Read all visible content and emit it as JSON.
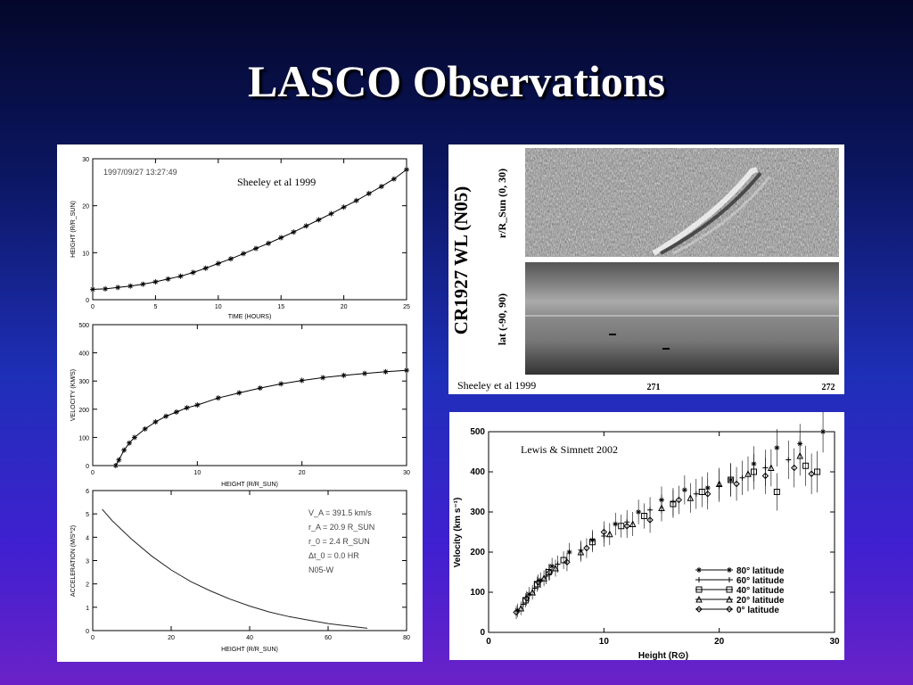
{
  "slide": {
    "title": "LASCO Observations"
  },
  "citations": {
    "sheeley_left": "Sheeley et al 1999",
    "sheeley_right": "Sheeley et al 1999",
    "lewis": "Lewis & Simnett 2002"
  },
  "chart_data": [
    {
      "type": "line",
      "id": "height-time",
      "annotation": "1997/09/27   13:27:49",
      "xlabel": "TIME (HOURS)",
      "ylabel": "HEIGHT (R/R_SUN)",
      "xlim": [
        0,
        25
      ],
      "ylim": [
        0,
        30
      ],
      "xticks": [
        0,
        5,
        10,
        15,
        20,
        25
      ],
      "yticks": [
        0,
        10,
        20,
        30
      ],
      "x": [
        0,
        1,
        2,
        3,
        4,
        5,
        6,
        7,
        8,
        9,
        10,
        11,
        12,
        13,
        14,
        15,
        16,
        17,
        18,
        19,
        20,
        21,
        22,
        23,
        24,
        25
      ],
      "y": [
        2.2,
        2.3,
        2.6,
        2.9,
        3.3,
        3.8,
        4.4,
        5.0,
        5.8,
        6.7,
        7.7,
        8.7,
        9.8,
        10.9,
        12.0,
        13.2,
        14.4,
        15.7,
        17.0,
        18.3,
        19.7,
        21.1,
        22.6,
        24.1,
        25.7,
        27.7
      ]
    },
    {
      "type": "line",
      "id": "velocity-height",
      "xlabel": "HEIGHT (R/R_SUN)",
      "ylabel": "VELOCITY (KM/S)",
      "xlim": [
        0,
        30
      ],
      "ylim": [
        0,
        500
      ],
      "xticks": [
        0,
        10,
        20,
        30
      ],
      "yticks": [
        0,
        100,
        200,
        300,
        400,
        500
      ],
      "x": [
        2.2,
        2.5,
        3,
        3.5,
        4,
        5,
        6,
        7,
        8,
        9,
        10,
        12,
        14,
        16,
        18,
        20,
        22,
        24,
        26,
        28,
        30
      ],
      "y": [
        0,
        20,
        55,
        80,
        100,
        130,
        155,
        175,
        190,
        205,
        215,
        240,
        258,
        275,
        290,
        302,
        312,
        320,
        327,
        333,
        338
      ]
    },
    {
      "type": "line",
      "id": "acceleration-height",
      "xlabel": "HEIGHT (R/R_SUN)",
      "ylabel": "ACCELERATION (M/S^2)",
      "xlim": [
        0,
        80
      ],
      "ylim": [
        0,
        6
      ],
      "xticks": [
        0,
        20,
        40,
        60,
        80
      ],
      "yticks": [
        0,
        1,
        2,
        3,
        4,
        5,
        6
      ],
      "x": [
        2.4,
        5,
        10,
        15,
        20,
        25,
        30,
        35,
        40,
        45,
        50,
        55,
        60,
        65,
        70
      ],
      "y": [
        5.2,
        4.7,
        3.9,
        3.2,
        2.6,
        2.1,
        1.7,
        1.35,
        1.05,
        0.8,
        0.6,
        0.45,
        0.3,
        0.2,
        0.1
      ],
      "params": [
        "V_A = 391.5 km/s",
        "r_A = 20.9 R_SUN",
        "r_0 = 2.4 R_SUN",
        "Δt_0 = 0.0 HR",
        "N05-W"
      ]
    },
    {
      "type": "heatmap",
      "id": "height-time-map",
      "title": "CR1927 WL (N05)",
      "ylabel_top": "r/R_Sun  (0, 30)",
      "ylabel_bottom": "lat  (-90, 90)",
      "xticks": [
        "271",
        "272"
      ]
    },
    {
      "type": "scatter",
      "id": "velocity-height-latitudes",
      "xlabel": "Height (R⊙)",
      "ylabel": "Velocity (km s⁻¹)",
      "xlim": [
        0,
        30
      ],
      "ylim": [
        0,
        500
      ],
      "xticks": [
        0,
        10,
        20,
        30
      ],
      "yticks": [
        0,
        100,
        200,
        300,
        400,
        500
      ],
      "series": [
        {
          "name": "80° latitude",
          "marker": "asterisk",
          "x": [
            2.5,
            3.5,
            4.5,
            5.5,
            7,
            9,
            11,
            13,
            15,
            17,
            19,
            21,
            23,
            25,
            27,
            29
          ],
          "y": [
            55,
            95,
            130,
            165,
            200,
            230,
            270,
            300,
            330,
            355,
            360,
            380,
            420,
            460,
            470,
            500
          ]
        },
        {
          "name": "60° latitude",
          "marker": "plus",
          "x": [
            3,
            4,
            5,
            6,
            8,
            10,
            12,
            14,
            16,
            18,
            20,
            22,
            24,
            26
          ],
          "y": [
            70,
            110,
            140,
            170,
            205,
            240,
            275,
            305,
            325,
            345,
            365,
            385,
            410,
            430
          ]
        },
        {
          "name": "40° latitude",
          "marker": "square",
          "x": [
            3.2,
            4.2,
            5.2,
            6.5,
            9,
            11.5,
            13.5,
            16,
            18.5,
            21,
            23,
            25,
            27.5,
            28.5
          ],
          "y": [
            80,
            120,
            150,
            180,
            225,
            265,
            290,
            320,
            350,
            380,
            400,
            350,
            415,
            400
          ]
        },
        {
          "name": "20° latitude",
          "marker": "triangle",
          "x": [
            2.8,
            3.8,
            4.8,
            5.8,
            8,
            10.5,
            12.5,
            15,
            17.5,
            20,
            22.5,
            24.5,
            27
          ],
          "y": [
            60,
            100,
            135,
            160,
            200,
            245,
            270,
            310,
            335,
            370,
            395,
            410,
            440
          ]
        },
        {
          "name": "0° latitude",
          "marker": "diamond",
          "x": [
            2.4,
            3.3,
            4.3,
            5.3,
            6.8,
            8.5,
            10,
            12,
            14,
            16.5,
            19,
            21.5,
            24,
            26.5,
            28
          ],
          "y": [
            50,
            85,
            125,
            150,
            175,
            210,
            250,
            265,
            280,
            330,
            345,
            370,
            390,
            410,
            395
          ]
        }
      ]
    }
  ]
}
